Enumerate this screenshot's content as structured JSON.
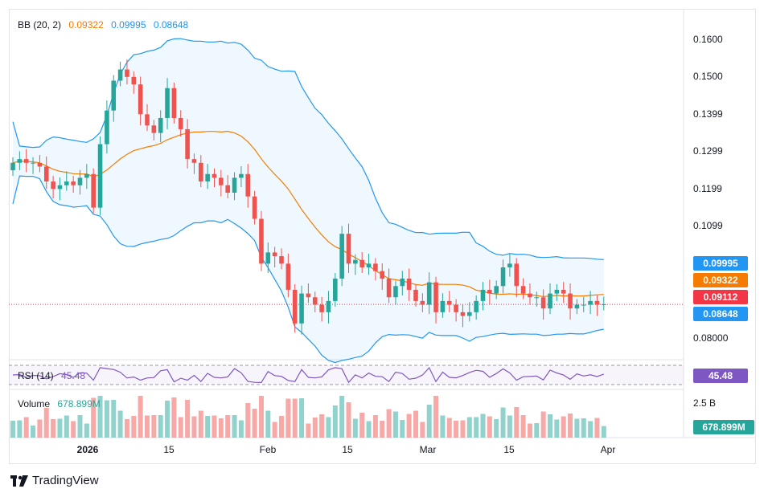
{
  "legend": {
    "bb_label": "BB (20, 2)",
    "bb_mid": "0.09322",
    "bb_upper": "0.09995",
    "bb_lower": "0.08648",
    "rsi_label": "RSI (14)",
    "rsi_value": "45.48",
    "vol_label": "Volume",
    "vol_value": "678.899M"
  },
  "price_axis": [
    "0.1600",
    "0.1500",
    "0.1399",
    "0.1299",
    "0.1199",
    "0.1099",
    "0.08000"
  ],
  "price_tags": {
    "upper": "0.09995",
    "mid": "0.09322",
    "last": "0.09112",
    "lower": "0.08648"
  },
  "rsi_tag": "45.48",
  "volume_axis": "2.5 B",
  "volume_tag": "678.899M",
  "time_axis": [
    "2026",
    "15",
    "Feb",
    "15",
    "Mar",
    "15",
    "Apr"
  ],
  "brand": "TradingView",
  "colors": {
    "up": "#26a69a",
    "down": "#ef5350",
    "upper": "#2196f3",
    "mid": "#f57c00",
    "rsi": "#7e57c2",
    "last": "#f23645"
  },
  "chart_data": {
    "type": "candlestick",
    "title": "",
    "y_range": [
      0.078,
      0.164
    ],
    "x_tick_labels": [
      "2026",
      "15",
      "Feb",
      "15",
      "Mar",
      "15",
      "Apr"
    ],
    "close": [
      0.129,
      0.13,
      0.129,
      0.129,
      0.128,
      0.124,
      0.122,
      0.123,
      0.124,
      0.123,
      0.125,
      0.126,
      0.117,
      0.134,
      0.143,
      0.151,
      0.154,
      0.152,
      0.15,
      0.142,
      0.139,
      0.137,
      0.141,
      0.149,
      0.141,
      0.138,
      0.13,
      0.129,
      0.124,
      0.126,
      0.125,
      0.123,
      0.121,
      0.125,
      0.126,
      0.12,
      0.114,
      0.102,
      0.105,
      0.104,
      0.102,
      0.095,
      0.086,
      0.094,
      0.093,
      0.091,
      0.089,
      0.092,
      0.098,
      0.11,
      0.102,
      0.103,
      0.101,
      0.102,
      0.1,
      0.098,
      0.093,
      0.096,
      0.098,
      0.095,
      0.092,
      0.091,
      0.097,
      0.089,
      0.092,
      0.091,
      0.089,
      0.088,
      0.089,
      0.092,
      0.095,
      0.094,
      0.096,
      0.101,
      0.102,
      0.096,
      0.094,
      0.093,
      0.093,
      0.09,
      0.094,
      0.095,
      0.094,
      0.09,
      0.091,
      0.091,
      0.092,
      0.091,
      0.0911
    ]
  }
}
